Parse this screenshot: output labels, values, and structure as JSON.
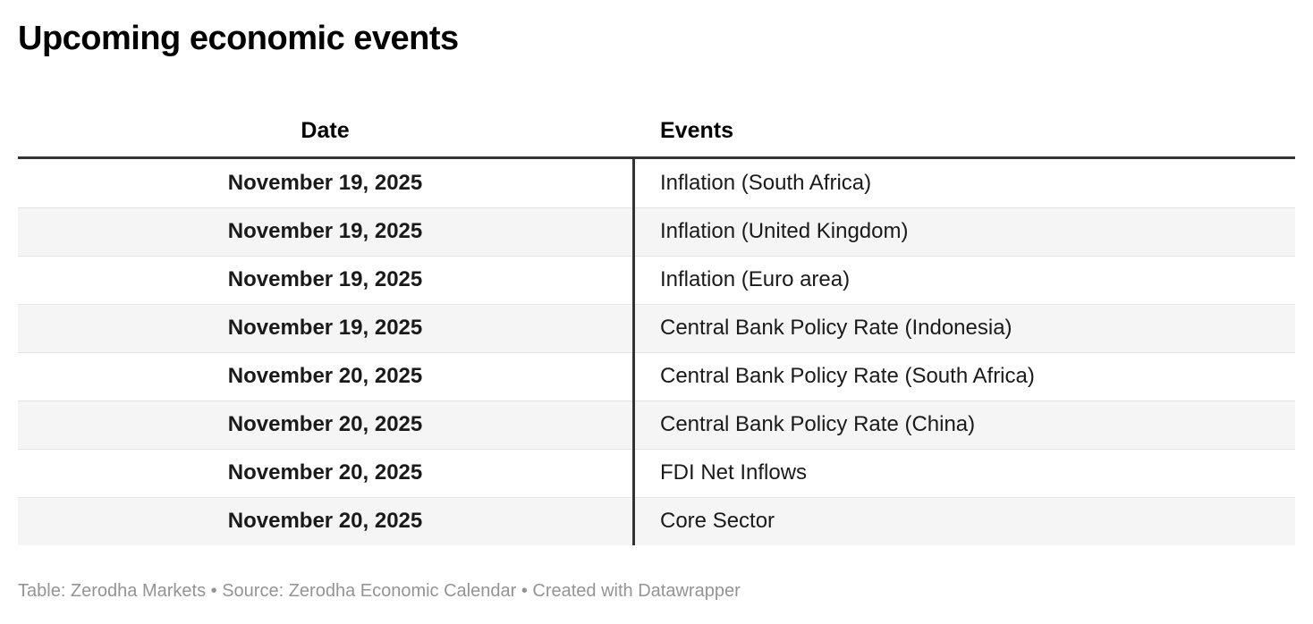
{
  "title": "Upcoming economic events",
  "chart_data": {
    "type": "table",
    "title": "Upcoming economic events",
    "columns": [
      {
        "label": "Date"
      },
      {
        "label": "Events"
      }
    ],
    "rows": [
      {
        "date": "November 19, 2025",
        "event": "Inflation (South Africa)"
      },
      {
        "date": "November 19, 2025",
        "event": "Inflation (United Kingdom)"
      },
      {
        "date": "November 19, 2025",
        "event": "Inflation (Euro area)"
      },
      {
        "date": "November 19, 2025",
        "event": "Central Bank Policy Rate (Indonesia)"
      },
      {
        "date": "November 20, 2025",
        "event": "Central Bank Policy Rate (South Africa)"
      },
      {
        "date": "November 20, 2025",
        "event": "Central Bank Policy Rate (China)"
      },
      {
        "date": "November 20, 2025",
        "event": "FDI Net Inflows"
      },
      {
        "date": "November 20, 2025",
        "event": "Core Sector"
      }
    ],
    "layout_hints": {
      "date_column_alignment": "center",
      "events_column_alignment": "left",
      "striped_rows": true
    }
  },
  "footer": {
    "text": "Table: Zerodha Markets • Source: Zerodha Economic Calendar • Created with Datawrapper"
  },
  "colors": {
    "title": "#000000",
    "text": "#1a1a1a",
    "rule": "#333333",
    "stripe": "#f5f5f5",
    "separator": "#e3e3e3",
    "footer": "#949494",
    "bg": "#ffffff"
  }
}
